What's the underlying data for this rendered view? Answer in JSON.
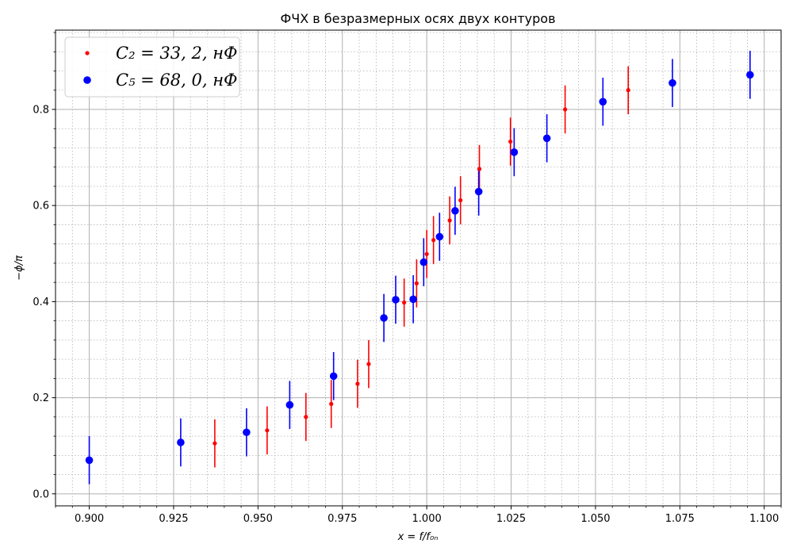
{
  "chart_data": {
    "type": "scatter",
    "title": "ФЧХ в безразмерных осях двух контуров",
    "xlabel": "x = f/f₀ₙ",
    "ylabel": "−ϕ/π",
    "xlim": [
      0.89,
      1.105
    ],
    "ylim": [
      -0.025,
      0.965
    ],
    "xticks": [
      0.9,
      0.925,
      0.95,
      0.975,
      1.0,
      1.025,
      1.05,
      1.075,
      1.1
    ],
    "xtick_labels": [
      "0.900",
      "0.925",
      "0.950",
      "0.975",
      "1.000",
      "1.025",
      "1.050",
      "1.075",
      "1.100"
    ],
    "yticks": [
      0.0,
      0.2,
      0.4,
      0.6,
      0.8
    ],
    "ytick_labels": [
      "0.0",
      "0.2",
      "0.4",
      "0.6",
      "0.8"
    ],
    "grid": true,
    "minor_grid": true,
    "legend_position": "top-left",
    "series": [
      {
        "name": "C₂ = 33, 2, нФ",
        "color": "#ff0000",
        "marker": "small-dot",
        "x": [
          0.9372,
          0.9527,
          0.9642,
          0.9717,
          0.9795,
          0.9828,
          0.9933,
          0.997,
          1.0,
          1.002,
          1.0068,
          1.01,
          1.0156,
          1.0248,
          1.041,
          1.0597
        ],
        "y": [
          0.105,
          0.132,
          0.16,
          0.187,
          0.229,
          0.27,
          0.398,
          0.438,
          0.499,
          0.528,
          0.569,
          0.611,
          0.676,
          0.733,
          0.8,
          0.84
        ],
        "yerr": 0.05
      },
      {
        "name": "C₅ = 68, 0, нФ",
        "color": "#0000ff",
        "marker": "large-dot",
        "x": [
          0.9,
          0.9271,
          0.9466,
          0.9594,
          0.9724,
          0.9873,
          0.9908,
          0.996,
          0.9991,
          1.0038,
          1.0084,
          1.0154,
          1.0259,
          1.0356,
          1.0522,
          1.0728,
          1.0958
        ],
        "y": [
          0.07,
          0.107,
          0.128,
          0.185,
          0.245,
          0.366,
          0.404,
          0.405,
          0.482,
          0.535,
          0.589,
          0.629,
          0.711,
          0.74,
          0.816,
          0.855,
          0.872
        ],
        "yerr": 0.05
      }
    ]
  }
}
